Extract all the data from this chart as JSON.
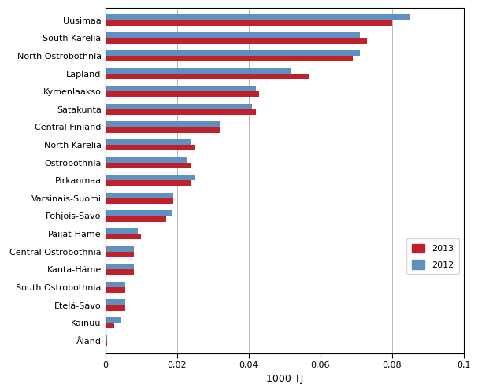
{
  "categories": [
    "Uusimaa",
    "South Karelia",
    "North Ostrobothnia",
    "Lapland",
    "Kymenlaakso",
    "Satakunta",
    "Central Finland",
    "North Karelia",
    "Ostrobothnia",
    "Pirkanmaa",
    "Varsinais-Suomi",
    "Pohjois-Savo",
    "Päijät-Häme",
    "Central Ostrobothnia",
    "Kanta-Häme",
    "South Ostrobothnia",
    "Etelä-Savo",
    "Kainuu",
    "Åland"
  ],
  "values_2013": [
    0.08,
    0.073,
    0.069,
    0.057,
    0.043,
    0.042,
    0.032,
    0.025,
    0.024,
    0.024,
    0.019,
    0.017,
    0.01,
    0.008,
    0.008,
    0.0055,
    0.0055,
    0.0025,
    0.0005
  ],
  "values_2012": [
    0.085,
    0.071,
    0.071,
    0.052,
    0.042,
    0.041,
    0.032,
    0.024,
    0.023,
    0.025,
    0.019,
    0.0185,
    0.009,
    0.008,
    0.008,
    0.0055,
    0.0055,
    0.0045,
    0.0005
  ],
  "color_2013": "#C0202A",
  "color_2012": "#6090C0",
  "xlabel": "1000 TJ",
  "xlim": [
    0,
    0.1
  ],
  "xticks": [
    0,
    0.02,
    0.04,
    0.06,
    0.08,
    0.1
  ],
  "xtick_labels": [
    "0",
    "0,02",
    "0,04",
    "0,06",
    "0,08",
    "0,1"
  ],
  "legend_2013": "2013",
  "legend_2012": "2012",
  "bar_height": 0.32,
  "figsize": [
    6.07,
    4.93
  ],
  "dpi": 100
}
